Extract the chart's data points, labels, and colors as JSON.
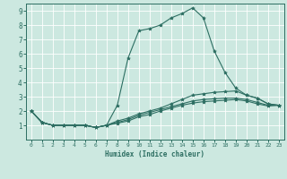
{
  "title": "",
  "xlabel": "Humidex (Indice chaleur)",
  "ylabel": "",
  "xlim": [
    -0.5,
    23.5
  ],
  "ylim": [
    0,
    9.5
  ],
  "xticks": [
    0,
    1,
    2,
    3,
    4,
    5,
    6,
    7,
    8,
    9,
    10,
    11,
    12,
    13,
    14,
    15,
    16,
    17,
    18,
    19,
    20,
    21,
    22,
    23
  ],
  "yticks": [
    1,
    2,
    3,
    4,
    5,
    6,
    7,
    8,
    9
  ],
  "background_color": "#cce8e0",
  "line_color": "#2d6e62",
  "grid_color": "#ffffff",
  "lines": [
    [
      2.0,
      1.2,
      1.0,
      1.0,
      1.0,
      1.0,
      0.85,
      1.0,
      2.4,
      5.7,
      7.6,
      7.75,
      8.0,
      8.5,
      8.8,
      9.2,
      8.5,
      6.2,
      4.7,
      3.6,
      3.1,
      2.9,
      2.5,
      2.4
    ],
    [
      2.0,
      1.2,
      1.0,
      1.0,
      1.0,
      1.0,
      0.85,
      1.0,
      1.3,
      1.5,
      1.8,
      2.0,
      2.2,
      2.5,
      2.8,
      3.1,
      3.2,
      3.3,
      3.35,
      3.4,
      3.1,
      2.9,
      2.5,
      2.4
    ],
    [
      2.0,
      1.2,
      1.0,
      1.0,
      1.0,
      1.0,
      0.85,
      1.0,
      1.2,
      1.4,
      1.7,
      1.9,
      2.1,
      2.3,
      2.5,
      2.7,
      2.8,
      2.85,
      2.9,
      2.9,
      2.8,
      2.6,
      2.4,
      2.4
    ],
    [
      2.0,
      1.2,
      1.0,
      1.0,
      1.0,
      1.0,
      0.85,
      1.0,
      1.15,
      1.3,
      1.6,
      1.75,
      2.0,
      2.2,
      2.4,
      2.55,
      2.65,
      2.7,
      2.75,
      2.8,
      2.7,
      2.5,
      2.35,
      2.4
    ]
  ]
}
